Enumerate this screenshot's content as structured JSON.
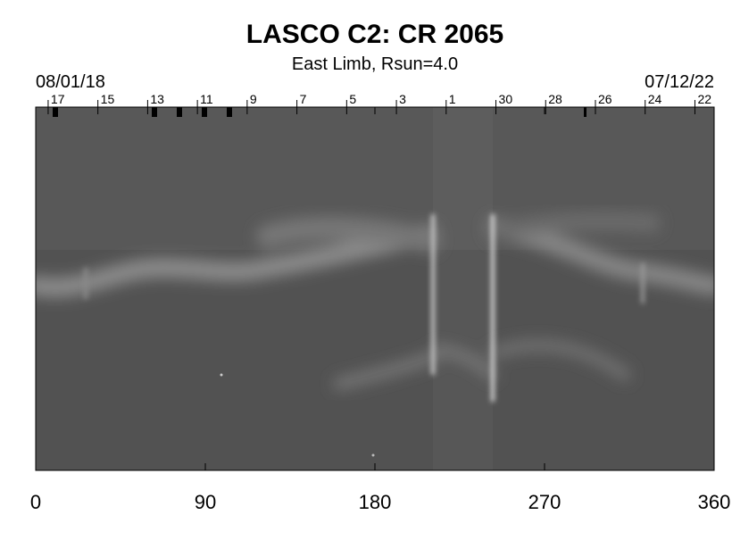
{
  "chart_data": {
    "type": "synoptic-map",
    "title": "LASCO C2: CR 2065",
    "subtitle": "East Limb, Rsun=4.0",
    "start_date": "08/01/18",
    "end_date": "07/12/22",
    "xlim": [
      0,
      360
    ],
    "xticks": [
      0,
      90,
      180,
      270,
      360
    ],
    "x2ticks": [
      {
        "value": 6.6,
        "label": "17"
      },
      {
        "value": 33.0,
        "label": "15"
      },
      {
        "value": 59.4,
        "label": "13"
      },
      {
        "value": 85.8,
        "label": "11"
      },
      {
        "value": 112.2,
        "label": "9"
      },
      {
        "value": 138.6,
        "label": "7"
      },
      {
        "value": 165.0,
        "label": "5"
      },
      {
        "value": 191.4,
        "label": "3"
      },
      {
        "value": 217.8,
        "label": "1"
      },
      {
        "value": 244.2,
        "label": "30"
      },
      {
        "value": 270.6,
        "label": "28"
      },
      {
        "value": 297.0,
        "label": "26"
      },
      {
        "value": 323.4,
        "label": "24"
      },
      {
        "value": 349.8,
        "label": "22"
      }
    ]
  }
}
